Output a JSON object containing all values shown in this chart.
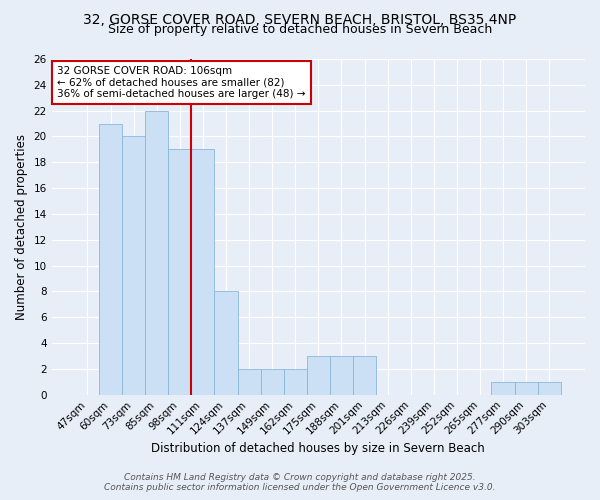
{
  "title_line1": "32, GORSE COVER ROAD, SEVERN BEACH, BRISTOL, BS35 4NP",
  "title_line2": "Size of property relative to detached houses in Severn Beach",
  "xlabel": "Distribution of detached houses by size in Severn Beach",
  "ylabel": "Number of detached properties",
  "categories": [
    "47sqm",
    "60sqm",
    "73sqm",
    "85sqm",
    "98sqm",
    "111sqm",
    "124sqm",
    "137sqm",
    "149sqm",
    "162sqm",
    "175sqm",
    "188sqm",
    "201sqm",
    "213sqm",
    "226sqm",
    "239sqm",
    "252sqm",
    "265sqm",
    "277sqm",
    "290sqm",
    "303sqm"
  ],
  "values": [
    0,
    21,
    20,
    22,
    19,
    19,
    8,
    2,
    2,
    2,
    3,
    3,
    3,
    0,
    0,
    0,
    0,
    0,
    1,
    1,
    1
  ],
  "bar_color": "#cce0f5",
  "bar_edge_color": "#88b8d8",
  "vline_x_index": 5,
  "vline_color": "#cc0000",
  "annotation_text": "32 GORSE COVER ROAD: 106sqm\n← 62% of detached houses are smaller (82)\n36% of semi-detached houses are larger (48) →",
  "annotation_box_color": "white",
  "annotation_box_edge": "#cc0000",
  "ylim": [
    0,
    26
  ],
  "yticks": [
    0,
    2,
    4,
    6,
    8,
    10,
    12,
    14,
    16,
    18,
    20,
    22,
    24,
    26
  ],
  "background_color": "#e8eef8",
  "grid_color": "#ffffff",
  "footer_line1": "Contains HM Land Registry data © Crown copyright and database right 2025.",
  "footer_line2": "Contains public sector information licensed under the Open Government Licence v3.0.",
  "title_fontsize": 10,
  "subtitle_fontsize": 9,
  "axis_label_fontsize": 8.5,
  "tick_fontsize": 7.5,
  "annotation_fontsize": 7.5,
  "footer_fontsize": 6.5
}
